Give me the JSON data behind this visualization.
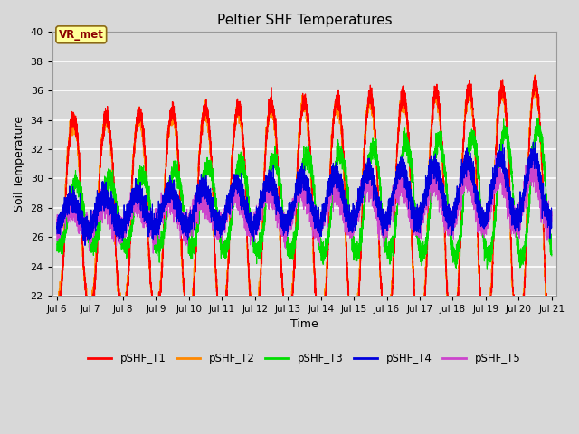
{
  "title": "Peltier SHF Temperatures",
  "xlabel": "Time",
  "ylabel": "Soil Temperature",
  "ylim": [
    22,
    40
  ],
  "start_day": 6,
  "end_day": 21,
  "annotation_text": "VR_met",
  "background_color": "#d8d8d8",
  "plot_bg_color": "#d8d8d8",
  "grid_color": "#ffffff",
  "series": [
    {
      "label": "pSHF_T1",
      "color": "#ff0000"
    },
    {
      "label": "pSHF_T2",
      "color": "#ff8800"
    },
    {
      "label": "pSHF_T3",
      "color": "#00dd00"
    },
    {
      "label": "pSHF_T4",
      "color": "#0000dd"
    },
    {
      "label": "pSHF_T5",
      "color": "#cc44cc"
    }
  ],
  "figsize": [
    6.4,
    4.8
  ],
  "dpi": 100
}
